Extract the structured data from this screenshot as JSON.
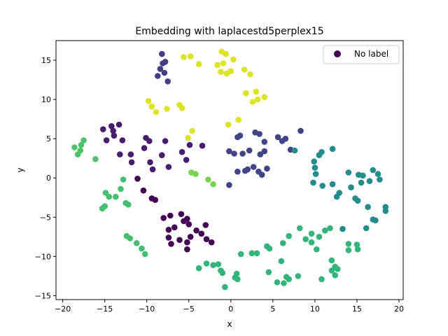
{
  "chart_data": {
    "type": "scatter",
    "title": "Embedding with laplacestd5perplex15",
    "xlabel": "x",
    "ylabel": "y",
    "xlim": [
      -20.8,
      20.5
    ],
    "ylim": [
      -15.5,
      17.5
    ],
    "xticks": [
      -20,
      -15,
      -10,
      -5,
      0,
      5,
      10,
      15,
      20
    ],
    "yticks": [
      -15,
      -10,
      -5,
      0,
      5,
      10,
      15
    ],
    "grid": false,
    "legend": {
      "placement": "top-right",
      "entries": [
        "No label"
      ],
      "marker_color": "#440154"
    },
    "colormap": "viridis",
    "points": [
      [
        -18.6,
        3.9,
        0.72
      ],
      [
        -18.2,
        3.0,
        0.72
      ],
      [
        -17.9,
        3.5,
        0.72
      ],
      [
        -17.8,
        4.2,
        0.72
      ],
      [
        -17.5,
        4.8,
        0.72
      ],
      [
        -16.1,
        2.4,
        0.72
      ],
      [
        -15.3,
        -3.9,
        0.7
      ],
      [
        -15.0,
        -3.6,
        0.7
      ],
      [
        -14.9,
        -1.9,
        0.7
      ],
      [
        -14.5,
        -2.4,
        0.7
      ],
      [
        -13.7,
        -2.4,
        0.7
      ],
      [
        -13.1,
        -1.4,
        0.7
      ],
      [
        -12.8,
        -0.2,
        0.7
      ],
      [
        -12.5,
        -3.2,
        0.7
      ],
      [
        -12.2,
        -3.4,
        0.7
      ],
      [
        -12.4,
        -7.4,
        0.7
      ],
      [
        -12.0,
        -7.7,
        0.7
      ],
      [
        -11.2,
        -8.3,
        0.7
      ],
      [
        -10.6,
        -9.0,
        0.7
      ],
      [
        -10.2,
        -9.7,
        0.7
      ],
      [
        -15.2,
        6.2,
        0.08
      ],
      [
        -14.8,
        4.8,
        0.08
      ],
      [
        -14.2,
        6.6,
        0.08
      ],
      [
        -14.0,
        6.0,
        0.08
      ],
      [
        -13.9,
        5.4,
        0.08
      ],
      [
        -13.3,
        6.8,
        0.08
      ],
      [
        -13.2,
        3.0,
        0.08
      ],
      [
        -12.9,
        4.8,
        0.08
      ],
      [
        -11.9,
        3.0,
        0.08
      ],
      [
        -11.8,
        2.0,
        0.08
      ],
      [
        -10.3,
        3.8,
        0.08
      ],
      [
        -10.1,
        5.1,
        0.08
      ],
      [
        -9.7,
        4.7,
        0.08
      ],
      [
        -9.6,
        2.0,
        0.08
      ],
      [
        -9.3,
        1.1,
        0.08
      ],
      [
        -8.2,
        2.9,
        0.08
      ],
      [
        -7.8,
        4.7,
        0.08
      ],
      [
        -7.4,
        1.4,
        0.08
      ],
      [
        -5.8,
        3.3,
        0.08
      ],
      [
        -4.9,
        4.2,
        0.08
      ],
      [
        -5.3,
        2.3,
        0.08
      ],
      [
        -3.4,
        4.1,
        0.08
      ],
      [
        -11.1,
        -0.1,
        0.0
      ],
      [
        -10.4,
        -1.6,
        0.0
      ],
      [
        -9.4,
        -2.6,
        0.0
      ],
      [
        -9.0,
        -2.8,
        0.0
      ],
      [
        -8.0,
        -5.1,
        0.0
      ],
      [
        -7.4,
        -6.6,
        0.0
      ],
      [
        -7.2,
        -4.8,
        0.0
      ],
      [
        -7.4,
        -7.6,
        0.0
      ],
      [
        -7.1,
        -8.4,
        0.0
      ],
      [
        -6.7,
        -6.3,
        0.0
      ],
      [
        -5.9,
        -4.6,
        0.0
      ],
      [
        -5.6,
        -5.5,
        0.0
      ],
      [
        -5.2,
        -5.2,
        0.0
      ],
      [
        -5.0,
        -5.9,
        0.0
      ],
      [
        -4.8,
        -7.5,
        0.0
      ],
      [
        -5.2,
        -8.2,
        0.0
      ],
      [
        -5.2,
        -9.1,
        0.0
      ],
      [
        -4.1,
        -6.7,
        0.0
      ],
      [
        -3.5,
        -7.1,
        0.0
      ],
      [
        -3.0,
        -6.0,
        0.0
      ],
      [
        -2.9,
        -7.8,
        0.0
      ],
      [
        -2.3,
        -8.2,
        0.0
      ],
      [
        -6.1,
        -7.9,
        0.0
      ],
      [
        -9.8,
        9.8,
        0.95
      ],
      [
        -9.4,
        9.1,
        0.95
      ],
      [
        -8.9,
        8.4,
        0.95
      ],
      [
        -7.6,
        8.8,
        0.95
      ],
      [
        -6.1,
        9.3,
        0.95
      ],
      [
        -5.8,
        8.9,
        0.95
      ],
      [
        -5.1,
        5.1,
        0.95
      ],
      [
        -4.6,
        6.0,
        0.95
      ],
      [
        -0.3,
        6.8,
        0.95
      ],
      [
        0.9,
        7.4,
        0.95
      ],
      [
        -8.2,
        15.8,
        0.18
      ],
      [
        -8.1,
        14.6,
        0.18
      ],
      [
        -7.8,
        14.8,
        0.18
      ],
      [
        -8.4,
        13.9,
        0.18
      ],
      [
        -8.7,
        13.0,
        0.18
      ],
      [
        -7.9,
        13.4,
        0.18
      ],
      [
        -7.5,
        12.3,
        0.18
      ],
      [
        -5.6,
        15.4,
        0.95
      ],
      [
        -4.8,
        15.5,
        0.95
      ],
      [
        -3.8,
        14.5,
        0.95
      ],
      [
        -1.6,
        14.4,
        0.95
      ],
      [
        -1.1,
        16.1,
        0.95
      ],
      [
        -0.6,
        15.8,
        0.95
      ],
      [
        -0.9,
        14.6,
        0.95
      ],
      [
        -1.2,
        13.5,
        0.95
      ],
      [
        -0.5,
        13.3,
        0.95
      ],
      [
        0.0,
        13.6,
        0.95
      ],
      [
        0.3,
        15.1,
        0.95
      ],
      [
        1.6,
        13.8,
        0.95
      ],
      [
        2.3,
        13.2,
        0.95
      ],
      [
        1.8,
        10.8,
        0.95
      ],
      [
        2.6,
        9.7,
        0.95
      ],
      [
        3.0,
        11.0,
        0.95
      ],
      [
        3.2,
        10.0,
        0.95
      ],
      [
        4.0,
        10.3,
        0.95
      ],
      [
        -4.7,
        0.7,
        0.8
      ],
      [
        -4.2,
        0.5,
        0.8
      ],
      [
        -2.7,
        -0.2,
        0.8
      ],
      [
        -2.1,
        -0.8,
        0.8
      ],
      [
        -0.2,
        3.4,
        0.2
      ],
      [
        0.4,
        3.1,
        0.2
      ],
      [
        0.8,
        0.8,
        0.2
      ],
      [
        1.1,
        5.4,
        0.2
      ],
      [
        1.4,
        3.1,
        0.2
      ],
      [
        1.7,
        0.9,
        0.2
      ],
      [
        2.0,
        1.1,
        0.2
      ],
      [
        2.2,
        3.5,
        0.2
      ],
      [
        2.7,
        1.4,
        0.2
      ],
      [
        2.9,
        5.8,
        0.2
      ],
      [
        3.3,
        0.8,
        0.2
      ],
      [
        3.4,
        5.6,
        0.2
      ],
      [
        3.5,
        3.0,
        0.2
      ],
      [
        3.7,
        0.4,
        0.2
      ],
      [
        4.0,
        3.4,
        0.2
      ],
      [
        4.0,
        4.6,
        0.2
      ],
      [
        4.3,
        1.2,
        0.2
      ],
      [
        5.6,
        5.2,
        0.2
      ],
      [
        6.1,
        4.7,
        0.2
      ],
      [
        6.5,
        5.0,
        0.2
      ],
      [
        7.1,
        3.6,
        0.2
      ],
      [
        8.3,
        6.0,
        0.2
      ],
      [
        -0.2,
        -0.9,
        0.2
      ],
      [
        0.8,
        5.2,
        0.2
      ],
      [
        7.6,
        3.5,
        0.48
      ],
      [
        9.9,
        2.1,
        0.48
      ],
      [
        10.0,
        1.3,
        0.48
      ],
      [
        9.8,
        -0.6,
        0.48
      ],
      [
        10.1,
        0.5,
        0.48
      ],
      [
        10.5,
        2.9,
        0.48
      ],
      [
        10.8,
        3.3,
        0.48
      ],
      [
        10.9,
        -1.0,
        0.48
      ],
      [
        12.1,
        3.7,
        0.48
      ],
      [
        12.1,
        -0.8,
        0.48
      ],
      [
        12.6,
        -2.4,
        0.48
      ],
      [
        12.9,
        -1.9,
        0.48
      ],
      [
        14.0,
        0.7,
        0.48
      ],
      [
        14.3,
        -1.2,
        0.48
      ],
      [
        14.8,
        -2.6,
        0.48
      ],
      [
        15.2,
        0.4,
        0.48
      ],
      [
        15.1,
        -2.9,
        0.48
      ],
      [
        15.5,
        -0.6,
        0.48
      ],
      [
        15.7,
        0.3,
        0.48
      ],
      [
        16.3,
        -3.7,
        0.48
      ],
      [
        16.5,
        -0.4,
        0.48
      ],
      [
        16.9,
        1.0,
        0.48
      ],
      [
        16.9,
        -5.3,
        0.48
      ],
      [
        17.2,
        -5.4,
        0.48
      ],
      [
        17.5,
        0.5,
        0.48
      ],
      [
        17.7,
        -0.2,
        0.48
      ],
      [
        18.4,
        -4.2,
        0.48
      ],
      [
        18.4,
        -3.7,
        0.48
      ],
      [
        16.1,
        -6.4,
        0.48
      ],
      [
        13.3,
        -6.5,
        0.48
      ],
      [
        6.0,
        -10.6,
        0.65
      ],
      [
        5.5,
        -13.3,
        0.65
      ],
      [
        6.3,
        -13.4,
        0.65
      ],
      [
        6.6,
        -12.6,
        0.65
      ],
      [
        6.9,
        -12.9,
        0.65
      ],
      [
        6.9,
        -7.4,
        0.65
      ],
      [
        6.2,
        -8.3,
        0.65
      ],
      [
        4.6,
        -9.0,
        0.65
      ],
      [
        4.3,
        -8.7,
        0.65
      ],
      [
        4.5,
        -12.0,
        0.65
      ],
      [
        3.1,
        -9.6,
        0.65
      ],
      [
        1.2,
        -9.7,
        0.65
      ],
      [
        2.5,
        -9.6,
        0.65
      ],
      [
        8.0,
        -12.5,
        0.65
      ],
      [
        8.2,
        -6.4,
        0.65
      ],
      [
        8.9,
        -7.8,
        0.65
      ],
      [
        9.6,
        -7.1,
        0.65
      ],
      [
        9.6,
        -8.2,
        0.65
      ],
      [
        10.2,
        -9.1,
        0.65
      ],
      [
        10.5,
        -7.5,
        0.65
      ],
      [
        10.8,
        -12.9,
        0.65
      ],
      [
        11.2,
        -6.7,
        0.65
      ],
      [
        11.8,
        -6.4,
        0.65
      ],
      [
        12.0,
        -10.5,
        0.65
      ],
      [
        12.0,
        -11.8,
        0.65
      ],
      [
        12.4,
        -11.3,
        0.65
      ],
      [
        12.4,
        -12.4,
        0.65
      ],
      [
        12.7,
        -11.6,
        0.65
      ],
      [
        14.0,
        -8.4,
        0.65
      ],
      [
        14.0,
        -9.2,
        0.65
      ],
      [
        15.0,
        -8.5,
        0.65
      ],
      [
        15.1,
        -9.1,
        0.65
      ],
      [
        -3.8,
        -11.5,
        0.65
      ],
      [
        -2.9,
        -10.9,
        0.65
      ],
      [
        -2.1,
        -11.1,
        0.65
      ],
      [
        -1.5,
        -11.0,
        0.65
      ],
      [
        -1.2,
        -11.8,
        0.65
      ],
      [
        -1.0,
        -12.1,
        0.65
      ],
      [
        -0.7,
        -13.9,
        0.65
      ],
      [
        0.5,
        -12.7,
        0.65
      ],
      [
        0.7,
        -12.2,
        0.65
      ],
      [
        0.8,
        -12.9,
        0.65
      ]
    ]
  }
}
